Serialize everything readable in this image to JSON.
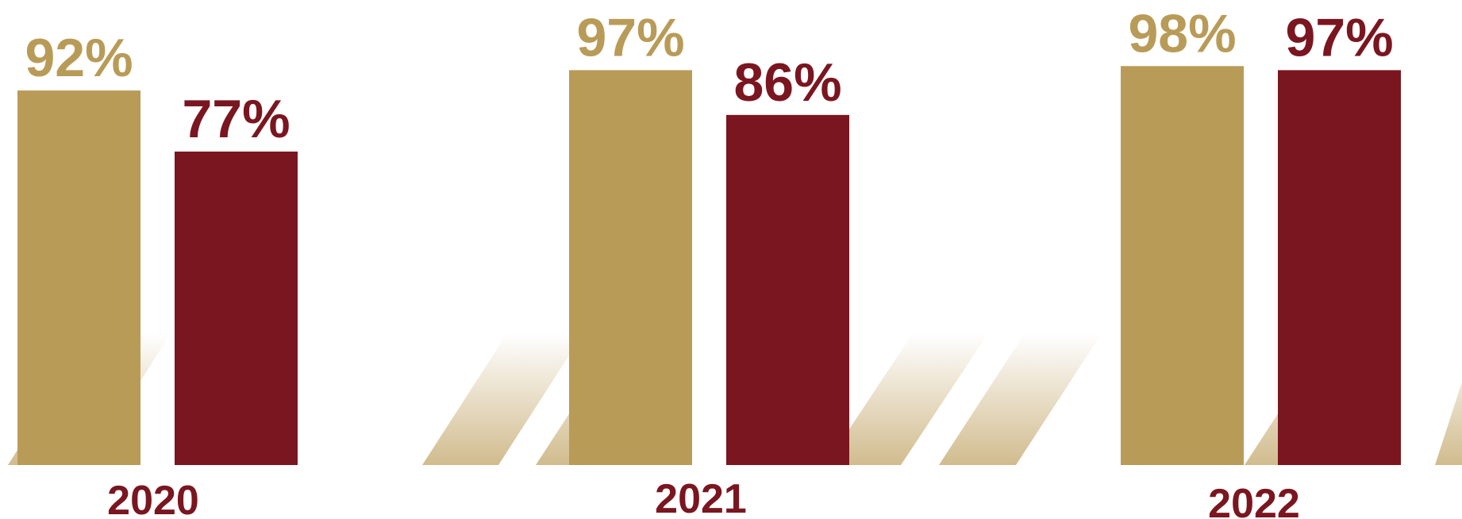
{
  "chart_data": {
    "type": "bar",
    "title": "",
    "xlabel": "",
    "ylabel": "",
    "ylim": [
      0,
      100
    ],
    "grid": false,
    "legend": "none",
    "categories": [
      "2020",
      "2021",
      "2022"
    ],
    "series": [
      {
        "values": [
          92,
          97,
          98
        ],
        "labels": [
          "92%",
          "97%",
          "98%"
        ],
        "color": "#B99B58"
      },
      {
        "values": [
          77,
          86,
          97
        ],
        "labels": [
          "77%",
          "86%",
          "97%"
        ],
        "color": "#7A1620"
      }
    ]
  },
  "colors": {
    "year_label": "#7A1620",
    "decor_stripe": "#C9B07A"
  }
}
